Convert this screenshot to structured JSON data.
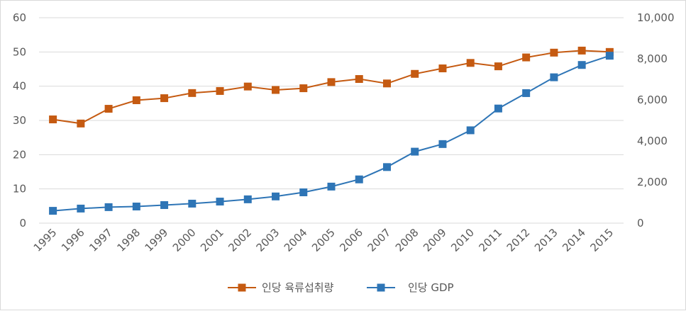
{
  "chart_data": {
    "type": "line",
    "title": "",
    "categories": [
      "1995",
      "1996",
      "1997",
      "1998",
      "1999",
      "2000",
      "2001",
      "2002",
      "2003",
      "2004",
      "2005",
      "2006",
      "2007",
      "2008",
      "2009",
      "2010",
      "2011",
      "2012",
      "2013",
      "2014",
      "2015"
    ],
    "y_left": {
      "ylim": [
        0,
        60
      ],
      "ticks": [
        "0",
        "10",
        "20",
        "30",
        "40",
        "50",
        "60"
      ],
      "tick_values": [
        0,
        10,
        20,
        30,
        40,
        50,
        60
      ]
    },
    "y_right": {
      "ylim": [
        0,
        10000
      ],
      "ticks": [
        "0",
        "2,000",
        "4,000",
        "6,000",
        "8,000",
        "10,000"
      ],
      "tick_values": [
        0,
        2000,
        4000,
        6000,
        8000,
        10000
      ]
    },
    "grid": true,
    "legend_position": "bottom",
    "series": [
      {
        "name": "인당 육류섭취량",
        "axis": "left",
        "color": "#C55A11",
        "values": [
          30.3,
          29.1,
          33.4,
          35.9,
          36.5,
          38.0,
          38.6,
          39.9,
          38.9,
          39.4,
          41.2,
          42.1,
          40.8,
          43.6,
          45.2,
          46.8,
          45.8,
          48.4,
          49.8,
          50.4,
          50.0
        ]
      },
      {
        "name": "인당 GDP",
        "axis": "right",
        "color": "#2E75B6",
        "values": [
          600,
          710,
          780,
          810,
          880,
          950,
          1050,
          1160,
          1300,
          1500,
          1780,
          2130,
          2730,
          3480,
          3850,
          4520,
          5580,
          6330,
          7100,
          7700,
          8150
        ]
      }
    ]
  }
}
